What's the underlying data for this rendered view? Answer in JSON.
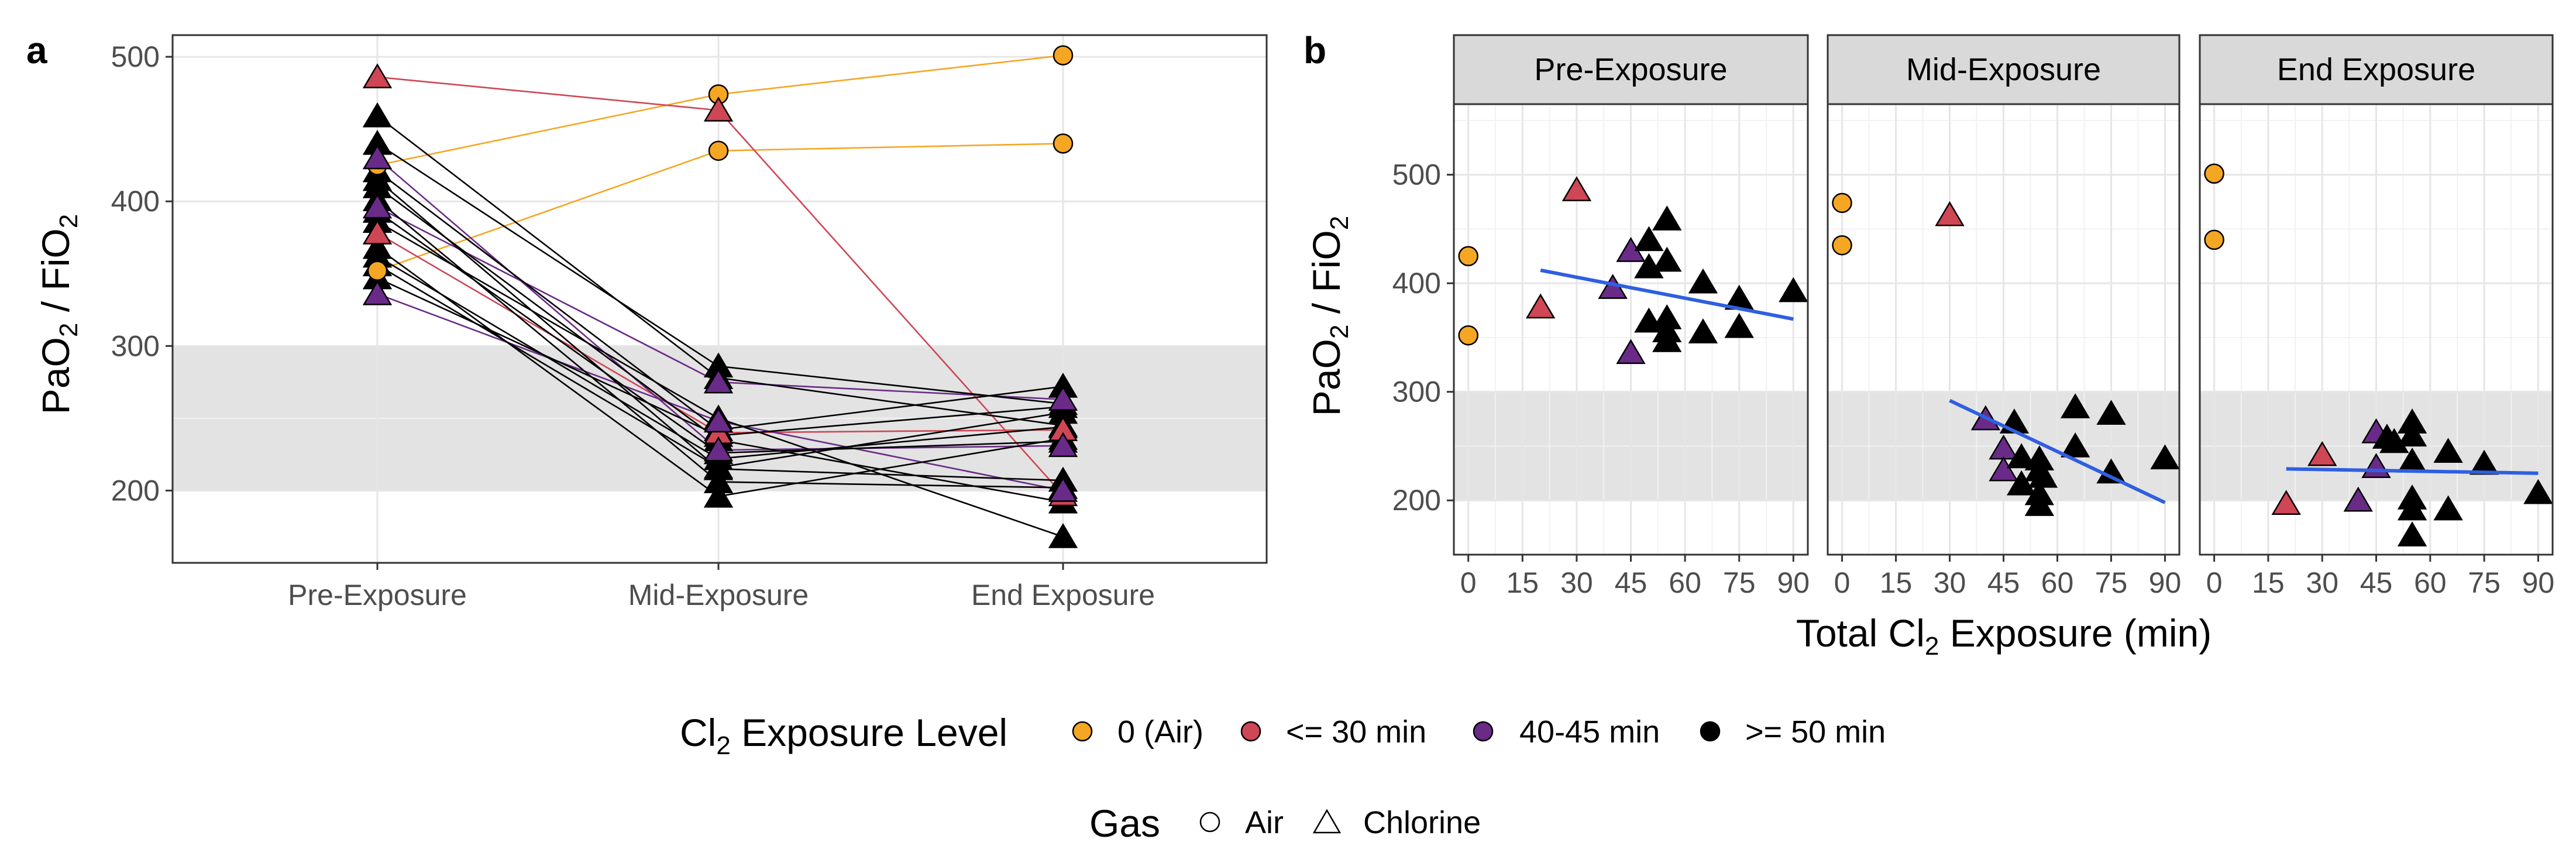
{
  "chart_data": [
    {
      "panel": "a",
      "type": "line",
      "title": "",
      "xlabel": "",
      "ylabel_main": "PaO",
      "ylabel_sub1": "2",
      "ylabel_mid": " / FiO",
      "ylabel_sub2": "2",
      "categories": [
        "Pre-Exposure",
        "Mid-Exposure",
        "End Exposure"
      ],
      "ylim": [
        150,
        515
      ],
      "yticks": [
        200,
        300,
        400,
        500
      ],
      "shaded_band": [
        200,
        300
      ],
      "series": [
        {
          "gas": "Air",
          "level": "0 (Air)",
          "values": [
            425,
            474,
            501
          ]
        },
        {
          "gas": "Air",
          "level": "0 (Air)",
          "values": [
            352,
            435,
            440
          ]
        },
        {
          "gas": "Chlorine",
          "level": "<= 30 min",
          "values": [
            486,
            463,
            197
          ]
        },
        {
          "gas": "Chlorine",
          "level": "<= 30 min",
          "values": [
            378,
            240,
            242
          ]
        },
        {
          "gas": "Chlorine",
          "level": "40-45 min",
          "values": [
            430,
            228,
            231
          ]
        },
        {
          "gas": "Chlorine",
          "level": "40-45 min",
          "values": [
            396,
            275,
            263
          ]
        },
        {
          "gas": "Chlorine",
          "level": "40-45 min",
          "values": [
            336,
            248,
            200
          ]
        },
        {
          "gas": "Chlorine",
          "level": ">= 50 min",
          "values": [
            459,
            278,
            245
          ]
        },
        {
          "gas": "Chlorine",
          "level": ">= 50 min",
          "values": [
            440,
            286,
            260
          ]
        },
        {
          "gas": "Chlorine",
          "level": ">= 50 min",
          "values": [
            421,
            242,
            272
          ]
        },
        {
          "gas": "Chlorine",
          "level": ">= 50 min",
          "values": [
            415,
            215,
            207
          ]
        },
        {
          "gas": "Chlorine",
          "level": ">= 50 min",
          "values": [
            410,
            235,
            192
          ]
        },
        {
          "gas": "Chlorine",
          "level": ">= 50 min",
          "values": [
            401,
            206,
            202
          ]
        },
        {
          "gas": "Chlorine",
          "level": ">= 50 min",
          "values": [
            393,
            226,
            234
          ]
        },
        {
          "gas": "Chlorine",
          "level": ">= 50 min",
          "values": [
            386,
            250,
            168
          ]
        },
        {
          "gas": "Chlorine",
          "level": ">= 50 min",
          "values": [
            368,
            196,
            236
          ]
        },
        {
          "gas": "Chlorine",
          "level": ">= 50 min",
          "values": [
            362,
            222,
            244
          ]
        },
        {
          "gas": "Chlorine",
          "level": ">= 50 min",
          "values": [
            356,
            216,
            254
          ]
        },
        {
          "gas": "Chlorine",
          "level": ">= 50 min",
          "values": [
            347,
            238,
            258
          ]
        }
      ]
    },
    {
      "panel": "b",
      "type": "scatter",
      "xlabel_main": "Total Cl",
      "xlabel_sub": "2",
      "xlabel_rest": " Exposure (min)",
      "ylabel_main": "PaO",
      "ylabel_sub1": "2",
      "ylabel_mid": " / FiO",
      "ylabel_sub2": "2",
      "xlim": [
        -4,
        94
      ],
      "xticks": [
        0,
        15,
        30,
        45,
        60,
        75,
        90
      ],
      "ylim": [
        150,
        565
      ],
      "yticks": [
        200,
        300,
        400,
        500
      ],
      "shaded_band": [
        200,
        300
      ],
      "facets": [
        {
          "title": "Pre-Exposure",
          "trend": {
            "x": [
              20,
              90
            ],
            "y": [
              412,
              367
            ],
            "color": "#2f5fe0"
          },
          "points": [
            {
              "x": 0,
              "y": 425,
              "gas": "Air",
              "level": "0 (Air)"
            },
            {
              "x": 0,
              "y": 352,
              "gas": "Air",
              "level": "0 (Air)"
            },
            {
              "x": 20,
              "y": 378,
              "gas": "Chlorine",
              "level": "<= 30 min"
            },
            {
              "x": 30,
              "y": 486,
              "gas": "Chlorine",
              "level": "<= 30 min"
            },
            {
              "x": 40,
              "y": 396,
              "gas": "Chlorine",
              "level": "40-45 min"
            },
            {
              "x": 45,
              "y": 430,
              "gas": "Chlorine",
              "level": "40-45 min"
            },
            {
              "x": 45,
              "y": 336,
              "gas": "Chlorine",
              "level": "40-45 min"
            },
            {
              "x": 50,
              "y": 440,
              "gas": "Chlorine",
              "level": ">= 50 min"
            },
            {
              "x": 50,
              "y": 415,
              "gas": "Chlorine",
              "level": ">= 50 min"
            },
            {
              "x": 50,
              "y": 365,
              "gas": "Chlorine",
              "level": ">= 50 min"
            },
            {
              "x": 55,
              "y": 459,
              "gas": "Chlorine",
              "level": ">= 50 min"
            },
            {
              "x": 55,
              "y": 421,
              "gas": "Chlorine",
              "level": ">= 50 min"
            },
            {
              "x": 55,
              "y": 368,
              "gas": "Chlorine",
              "level": ">= 50 min"
            },
            {
              "x": 55,
              "y": 356,
              "gas": "Chlorine",
              "level": ">= 50 min"
            },
            {
              "x": 55,
              "y": 347,
              "gas": "Chlorine",
              "level": ">= 50 min"
            },
            {
              "x": 65,
              "y": 401,
              "gas": "Chlorine",
              "level": ">= 50 min"
            },
            {
              "x": 65,
              "y": 355,
              "gas": "Chlorine",
              "level": ">= 50 min"
            },
            {
              "x": 75,
              "y": 386,
              "gas": "Chlorine",
              "level": ">= 50 min"
            },
            {
              "x": 75,
              "y": 360,
              "gas": "Chlorine",
              "level": ">= 50 min"
            },
            {
              "x": 90,
              "y": 393,
              "gas": "Chlorine",
              "level": ">= 50 min"
            }
          ]
        },
        {
          "title": "Mid-Exposure",
          "trend": {
            "x": [
              30,
              90
            ],
            "y": [
              292,
              198
            ],
            "color": "#2f5fe0"
          },
          "points": [
            {
              "x": 0,
              "y": 474,
              "gas": "Air",
              "level": "0 (Air)"
            },
            {
              "x": 0,
              "y": 435,
              "gas": "Air",
              "level": "0 (Air)"
            },
            {
              "x": 30,
              "y": 463,
              "gas": "Chlorine",
              "level": "<= 30 min"
            },
            {
              "x": 40,
              "y": 275,
              "gas": "Chlorine",
              "level": "40-45 min"
            },
            {
              "x": 45,
              "y": 248,
              "gas": "Chlorine",
              "level": "40-45 min"
            },
            {
              "x": 45,
              "y": 228,
              "gas": "Chlorine",
              "level": "40-45 min"
            },
            {
              "x": 48,
              "y": 272,
              "gas": "Chlorine",
              "level": ">= 50 min"
            },
            {
              "x": 50,
              "y": 240,
              "gas": "Chlorine",
              "level": ">= 50 min"
            },
            {
              "x": 50,
              "y": 215,
              "gas": "Chlorine",
              "level": ">= 50 min"
            },
            {
              "x": 55,
              "y": 238,
              "gas": "Chlorine",
              "level": ">= 50 min"
            },
            {
              "x": 55,
              "y": 228,
              "gas": "Chlorine",
              "level": ">= 50 min"
            },
            {
              "x": 55,
              "y": 206,
              "gas": "Chlorine",
              "level": ">= 50 min"
            },
            {
              "x": 55,
              "y": 196,
              "gas": "Chlorine",
              "level": ">= 50 min"
            },
            {
              "x": 56,
              "y": 222,
              "gas": "Chlorine",
              "level": ">= 50 min"
            },
            {
              "x": 65,
              "y": 286,
              "gas": "Chlorine",
              "level": ">= 50 min"
            },
            {
              "x": 65,
              "y": 250,
              "gas": "Chlorine",
              "level": ">= 50 min"
            },
            {
              "x": 75,
              "y": 280,
              "gas": "Chlorine",
              "level": ">= 50 min"
            },
            {
              "x": 75,
              "y": 226,
              "gas": "Chlorine",
              "level": ">= 50 min"
            },
            {
              "x": 90,
              "y": 239,
              "gas": "Chlorine",
              "level": ">= 50 min"
            }
          ]
        },
        {
          "title": "End Exposure",
          "trend": {
            "x": [
              20,
              90
            ],
            "y": [
              229,
              225
            ],
            "color": "#2f5fe0"
          },
          "points": [
            {
              "x": 0,
              "y": 501,
              "gas": "Air",
              "level": "0 (Air)"
            },
            {
              "x": 0,
              "y": 440,
              "gas": "Air",
              "level": "0 (Air)"
            },
            {
              "x": 20,
              "y": 197,
              "gas": "Chlorine",
              "level": "<= 30 min"
            },
            {
              "x": 30,
              "y": 242,
              "gas": "Chlorine",
              "level": "<= 30 min"
            },
            {
              "x": 40,
              "y": 200,
              "gas": "Chlorine",
              "level": "40-45 min"
            },
            {
              "x": 45,
              "y": 263,
              "gas": "Chlorine",
              "level": "40-45 min"
            },
            {
              "x": 45,
              "y": 231,
              "gas": "Chlorine",
              "level": "40-45 min"
            },
            {
              "x": 48,
              "y": 258,
              "gas": "Chlorine",
              "level": ">= 50 min"
            },
            {
              "x": 50,
              "y": 254,
              "gas": "Chlorine",
              "level": ">= 50 min"
            },
            {
              "x": 55,
              "y": 272,
              "gas": "Chlorine",
              "level": ">= 50 min"
            },
            {
              "x": 55,
              "y": 260,
              "gas": "Chlorine",
              "level": ">= 50 min"
            },
            {
              "x": 55,
              "y": 236,
              "gas": "Chlorine",
              "level": ">= 50 min"
            },
            {
              "x": 55,
              "y": 202,
              "gas": "Chlorine",
              "level": ">= 50 min"
            },
            {
              "x": 55,
              "y": 192,
              "gas": "Chlorine",
              "level": ">= 50 min"
            },
            {
              "x": 55,
              "y": 168,
              "gas": "Chlorine",
              "level": ">= 50 min"
            },
            {
              "x": 65,
              "y": 245,
              "gas": "Chlorine",
              "level": ">= 50 min"
            },
            {
              "x": 65,
              "y": 192,
              "gas": "Chlorine",
              "level": ">= 50 min"
            },
            {
              "x": 75,
              "y": 234,
              "gas": "Chlorine",
              "level": ">= 50 min"
            },
            {
              "x": 90,
              "y": 207,
              "gas": "Chlorine",
              "level": ">= 50 min"
            }
          ]
        }
      ]
    }
  ],
  "panel_labels": {
    "a": "a",
    "b": "b"
  },
  "colors": {
    "0 (Air)": "#f5a623",
    "<= 30 min": "#cf4655",
    "40-45 min": "#6a2b88",
    ">= 50 min": "#000000",
    "band": "#e3e3e3",
    "grid": "#ebebeb",
    "strip": "#d9d9d9",
    "trend": "#2f5fe0"
  },
  "legend": {
    "level_title_main": "Cl",
    "level_title_sub": "2",
    "level_title_rest": " Exposure Level",
    "levels": [
      "0 (Air)",
      "<= 30 min",
      "40-45 min",
      ">= 50 min"
    ],
    "gas_title": "Gas",
    "gases": [
      "Air",
      "Chlorine"
    ]
  }
}
